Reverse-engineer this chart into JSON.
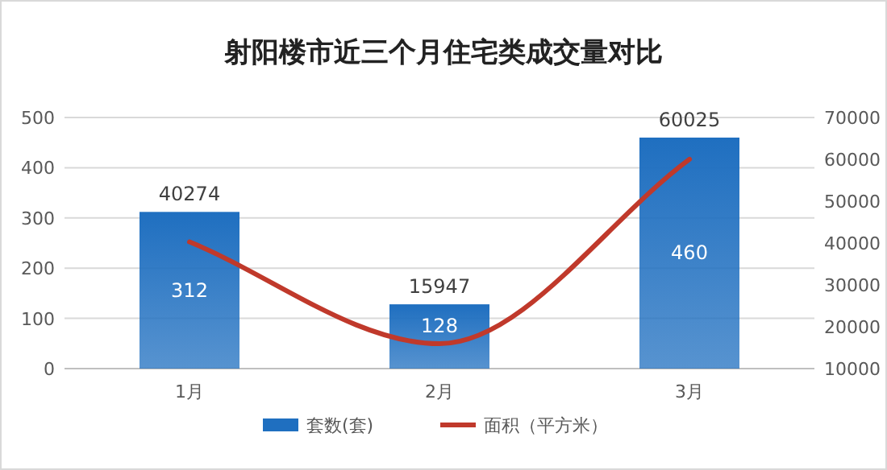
{
  "chart_data": {
    "type": "bar",
    "title": "射阳楼市近三个月住宅类成交量对比",
    "categories": [
      "1月",
      "2月",
      "3月"
    ],
    "series": [
      {
        "name": "套数(套)",
        "color": "#1f6fc0",
        "values": [
          312,
          128,
          460
        ]
      },
      {
        "name": "面积（平方米）",
        "type": "line",
        "axis": "y2",
        "color": "#c0392b",
        "values": [
          40274,
          15947,
          60025
        ]
      }
    ],
    "ylim": [
      0,
      500
    ],
    "yticks": [
      0,
      100,
      200,
      300,
      400,
      500
    ],
    "y2lim": [
      10000,
      70000
    ],
    "y2ticks": [
      10000,
      20000,
      30000,
      40000,
      50000,
      60000,
      70000
    ],
    "grid": "y",
    "legend": "bottom",
    "data_labels": true
  }
}
